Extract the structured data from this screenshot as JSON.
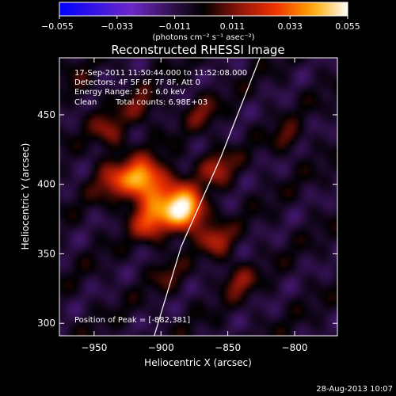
{
  "chart_data": {
    "type": "heatmap",
    "title": "Reconstructed RHESSI Image",
    "xlabel": "Heliocentric X (arcsec)",
    "ylabel": "Heliocentric Y (arcsec)",
    "xlim": [
      -976,
      -768
    ],
    "ylim": [
      291,
      491
    ],
    "x_ticks": [
      -950,
      -900,
      -850,
      -800
    ],
    "x_tick_labels": [
      "−950",
      "−900",
      "−850",
      "−800"
    ],
    "y_ticks": [
      300,
      350,
      400,
      450
    ],
    "y_tick_labels": [
      "300",
      "350",
      "400",
      "450"
    ],
    "colorbar": {
      "range": [
        -0.055,
        0.055
      ],
      "ticks": [
        -0.055,
        -0.033,
        -0.011,
        0.011,
        0.033,
        0.055
      ],
      "tick_labels": [
        "−0.055",
        "−0.033",
        "−0.011",
        "0.011",
        "0.033",
        "0.055"
      ],
      "unit_label": "(photons cm⁻² s⁻¹ asec⁻²)"
    },
    "annotations": {
      "time_range": "17-Sep-2011 11:50:44.000 to 11:52:08.000",
      "detectors": "Detectors: 4F 5F 6F 7F 8F, Att 0",
      "energy": "Energy Range: 3.0 - 6.0 keV",
      "clean_label": "Clean",
      "counts": "Total counts: 6.98E+03",
      "peak": "Position of Peak = [-882,381]"
    },
    "sources": [
      {
        "x": -882,
        "y": 381,
        "amplitude": 0.055,
        "sigma": 10
      },
      {
        "x": -902,
        "y": 392,
        "amplitude": 0.03,
        "sigma": 14
      },
      {
        "x": -915,
        "y": 405,
        "amplitude": 0.038,
        "sigma": 9
      },
      {
        "x": -935,
        "y": 403,
        "amplitude": 0.022,
        "sigma": 10
      },
      {
        "x": -908,
        "y": 372,
        "amplitude": 0.024,
        "sigma": 9
      },
      {
        "x": -938,
        "y": 438,
        "amplitude": 0.018,
        "sigma": 9
      },
      {
        "x": -858,
        "y": 412,
        "amplitude": 0.02,
        "sigma": 9
      },
      {
        "x": -858,
        "y": 360,
        "amplitude": 0.022,
        "sigma": 8
      },
      {
        "x": -915,
        "y": 455,
        "amplitude": 0.016,
        "sigma": 8
      },
      {
        "x": -870,
        "y": 452,
        "amplitude": 0.014,
        "sigma": 8
      },
      {
        "x": -805,
        "y": 433,
        "amplitude": 0.014,
        "sigma": 7
      },
      {
        "x": -842,
        "y": 331,
        "amplitude": 0.018,
        "sigma": 8
      },
      {
        "x": -895,
        "y": 335,
        "amplitude": 0.01,
        "sigma": 8
      },
      {
        "x": -960,
        "y": 470,
        "amplitude": 0.008,
        "sigma": 8
      }
    ],
    "limb": [
      {
        "x": -905,
        "y": 291
      },
      {
        "x": -885,
        "y": 355
      },
      {
        "x": -855,
        "y": 420
      },
      {
        "x": -826,
        "y": 491
      }
    ]
  },
  "footer": {
    "date_stamp": "28-Aug-2013 10:07"
  }
}
